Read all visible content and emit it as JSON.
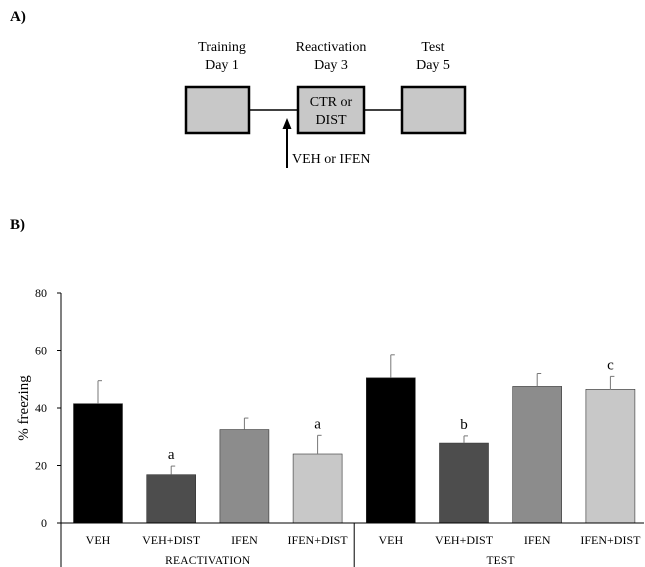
{
  "panel_a": {
    "label": "A)",
    "stages": [
      {
        "name": "Training",
        "day": "Day 1",
        "box_text": []
      },
      {
        "name": "Reactivation",
        "day": "Day 3",
        "box_text": [
          "CTR or",
          "DIST"
        ]
      },
      {
        "name": "Test",
        "day": "Day 5",
        "box_text": []
      }
    ],
    "injection_label": "VEH or IFEN"
  },
  "panel_b": {
    "label": "B)"
  },
  "chart_data": {
    "type": "bar",
    "ylabel": "% freezing",
    "ylim": [
      0,
      80
    ],
    "yticks": [
      0,
      20,
      40,
      60,
      80
    ],
    "groups": [
      {
        "name": "REACTIVATION",
        "categories": [
          "VEH",
          "VEH+DIST",
          "IFEN",
          "IFEN+DIST"
        ]
      },
      {
        "name": "TEST",
        "categories": [
          "VEH",
          "VEH+DIST",
          "IFEN",
          "IFEN+DIST"
        ]
      }
    ],
    "bars": [
      {
        "group": "REACTIVATION",
        "category": "VEH",
        "value": 41.5,
        "error": 8,
        "label": "",
        "color": "#000000"
      },
      {
        "group": "REACTIVATION",
        "category": "VEH+DIST",
        "value": 16.8,
        "error": 3,
        "label": "a",
        "color": "#4d4d4d"
      },
      {
        "group": "REACTIVATION",
        "category": "IFEN",
        "value": 32.5,
        "error": 4,
        "label": "",
        "color": "#8c8c8c"
      },
      {
        "group": "REACTIVATION",
        "category": "IFEN+DIST",
        "value": 24,
        "error": 6.5,
        "label": "a",
        "color": "#c8c8c8"
      },
      {
        "group": "TEST",
        "category": "VEH",
        "value": 50.5,
        "error": 8,
        "label": "",
        "color": "#000000"
      },
      {
        "group": "TEST",
        "category": "VEH+DIST",
        "value": 27.8,
        "error": 2.5,
        "label": "b",
        "color": "#4d4d4d"
      },
      {
        "group": "TEST",
        "category": "IFEN",
        "value": 47.5,
        "error": 4.5,
        "label": "",
        "color": "#8c8c8c"
      },
      {
        "group": "TEST",
        "category": "IFEN+DIST",
        "value": 46.5,
        "error": 4.5,
        "label": "c",
        "color": "#c8c8c8"
      }
    ]
  }
}
